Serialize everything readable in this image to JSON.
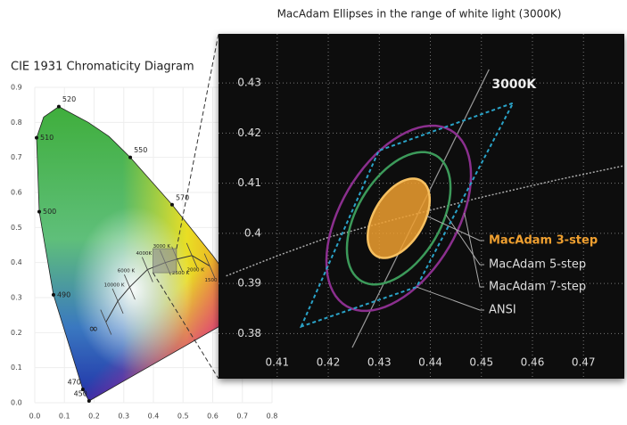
{
  "chart_data": [
    {
      "type": "chromaticity",
      "title": "CIE 1931 Chromaticity Diagram",
      "xlim": [
        0,
        0.8
      ],
      "ylim": [
        0,
        0.9
      ],
      "xticks": [
        {
          "value": 0,
          "label": "0.0"
        },
        0.1,
        0.2,
        0.3,
        0.4,
        0.5,
        0.6,
        0.7,
        0.8
      ],
      "yticks": [
        {
          "value": 0,
          "label": "0.0"
        },
        0.1,
        0.2,
        0.3,
        0.4,
        0.5,
        0.6,
        0.7,
        0.8,
        0.9
      ],
      "grid": true,
      "spectral_locus": {
        "x": [
          0.183,
          0.162,
          0.063,
          0.015,
          0.006,
          0.03,
          0.081,
          0.18,
          0.25,
          0.322,
          0.463,
          0.6,
          0.73
        ],
        "y": [
          0.005,
          0.038,
          0.308,
          0.545,
          0.756,
          0.815,
          0.845,
          0.8,
          0.76,
          0.7,
          0.565,
          0.42,
          0.27
        ],
        "labels": [
          "450",
          "470",
          "490",
          "500",
          "510",
          null,
          "520",
          null,
          null,
          "550",
          "570",
          null,
          null
        ]
      },
      "planckian_locus": {
        "x": [
          0.24,
          0.28,
          0.32,
          0.38,
          0.44,
          0.48,
          0.53,
          0.59
        ],
        "y": [
          0.23,
          0.29,
          0.33,
          0.38,
          0.4,
          0.41,
          0.42,
          0.39
        ],
        "labels": [
          "∞",
          "10000 K",
          "6000 K",
          "4000K",
          "3000 K",
          "2500 K",
          "2000 K",
          "1500 K"
        ]
      }
    },
    {
      "type": "macadam",
      "title": "MacAdam Ellipses in the range of white light (3000K)",
      "xlim": [
        0.3985,
        0.478
      ],
      "ylim": [
        0.371,
        0.4398
      ],
      "xticks": [
        0.41,
        0.42,
        0.43,
        0.44,
        0.45,
        0.46,
        0.47
      ],
      "yticks": [
        0.38,
        0.39,
        0.4,
        0.41,
        0.42,
        0.43
      ],
      "grid": true,
      "isotherm": {
        "name": "3000K",
        "x": [
          0.4247,
          0.4515
        ],
        "y": [
          0.3772,
          0.4327
        ]
      },
      "planckian_locus": {
        "x": [
          0.4,
          0.41,
          0.42,
          0.4338,
          0.45,
          0.465,
          0.478
        ],
        "y": [
          0.3915,
          0.3955,
          0.3992,
          0.403,
          0.4072,
          0.4107,
          0.4135
        ]
      },
      "ellipses": [
        {
          "name": "MacAdam 3-step",
          "color": "#f0a030",
          "center": [
            0.4338,
            0.403
          ],
          "a": 0.0087,
          "b": 0.0049,
          "angle": 60
        },
        {
          "name": "MacAdam 5-step",
          "color": "#3c9a5a",
          "center": [
            0.4338,
            0.403
          ],
          "a": 0.0145,
          "b": 0.0082,
          "angle": 60
        },
        {
          "name": "MacAdam 7-step",
          "color": "#8b2f8e",
          "center": [
            0.4338,
            0.403
          ],
          "a": 0.0203,
          "b": 0.0114,
          "angle": 60
        }
      ],
      "quadrangle": {
        "name": "ANSI",
        "color": "#2aa3c8",
        "x": [
          0.4147,
          0.4299,
          0.4562,
          0.4373
        ],
        "y": [
          0.3814,
          0.4165,
          0.426,
          0.3893
        ]
      }
    }
  ]
}
